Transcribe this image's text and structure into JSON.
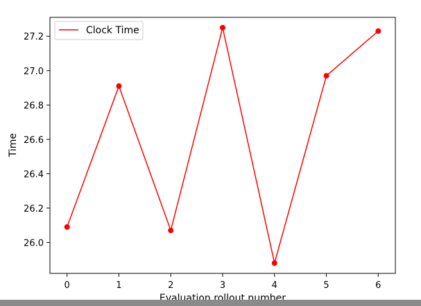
{
  "chart_data": {
    "type": "line",
    "title": "",
    "xlabel": "Evaluation rollout number",
    "ylabel": "Time",
    "x": [
      0,
      1,
      2,
      3,
      4,
      5,
      6
    ],
    "xlim": [
      -0.33,
      6.33
    ],
    "ylim": [
      25.82,
      27.31
    ],
    "xticks": [
      "0",
      "1",
      "2",
      "3",
      "4",
      "5",
      "6"
    ],
    "yticks": [
      "26.0",
      "26.2",
      "26.4",
      "26.6",
      "26.8",
      "27.0",
      "27.2"
    ],
    "ytick_values": [
      26.0,
      26.2,
      26.4,
      26.6,
      26.8,
      27.0,
      27.2
    ],
    "series": [
      {
        "name": "Clock Time",
        "color": "#ff0000",
        "marker": "circle",
        "values": [
          26.09,
          26.91,
          26.07,
          27.25,
          25.88,
          26.97,
          27.23
        ]
      }
    ],
    "grid": false,
    "legend_position": "top-left"
  }
}
